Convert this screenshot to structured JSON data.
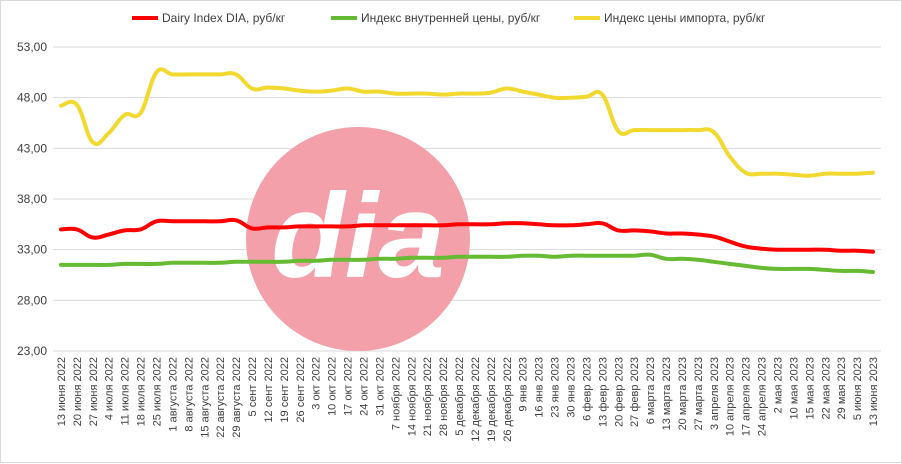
{
  "chart_data": {
    "type": "line",
    "title": "",
    "xlabel": "",
    "ylabel": "",
    "ylim": [
      23,
      53
    ],
    "yticks": [
      "23,00",
      "28,00",
      "33,00",
      "38,00",
      "43,00",
      "48,00",
      "53,00"
    ],
    "grid": "horizontal",
    "legend": "top",
    "watermark": "dia",
    "categories": [
      "13 июня 2022",
      "20 июня 2022",
      "27 июня 2022",
      "4 июля 2022",
      "11 июля 2022",
      "18 июля 2022",
      "25 июля 2022",
      "1 августа 2022",
      "8 августа 2022",
      "15 августа 2022",
      "22 августа 2022",
      "29 августа 2022",
      "5 сент 2022",
      "12 сент 2022",
      "19 сент 2022",
      "26 сент 2022",
      "3 окт 2022",
      "10 окт 2022",
      "17 окт 2022",
      "24 окт 2022",
      "31 окт 2022",
      "7 ноября 2022",
      "14 ноября 2022",
      "21 ноября 2022",
      "28 ноября 2022",
      "5 декабря 2022",
      "12 декабря 2022",
      "19 декабря 2022",
      "26 декабря 2022",
      "9 янв 2023",
      "16 янв 2023",
      "23 янв 2023",
      "30 янв 2023",
      "6 февр 2023",
      "13 февр 2023",
      "20 февр 2023",
      "27 февр 2023",
      "6 марта 2023",
      "13 марта 2023",
      "20 марта 2023",
      "27 марта 2023",
      "3 апреля 2023",
      "10 апреля 2023",
      "17 апреля 2023",
      "24 апреля 2023",
      "2 мая 2023",
      "10 мая 2023",
      "15 мая 2023",
      "22 мая 2023",
      "29 мая 2023",
      "5 июня 2023",
      "13 июня 2023"
    ],
    "series": [
      {
        "name": "Dairy Index DIA,  руб/кг",
        "color": "#ff0000",
        "values": [
          35.0,
          35.0,
          34.2,
          34.5,
          34.9,
          35.0,
          35.8,
          35.8,
          35.8,
          35.8,
          35.8,
          35.9,
          35.1,
          35.2,
          35.2,
          35.3,
          35.3,
          35.3,
          35.3,
          35.4,
          35.4,
          35.4,
          35.4,
          35.4,
          35.4,
          35.5,
          35.5,
          35.5,
          35.6,
          35.6,
          35.5,
          35.4,
          35.4,
          35.5,
          35.6,
          34.9,
          34.9,
          34.8,
          34.6,
          34.6,
          34.5,
          34.3,
          33.8,
          33.3,
          33.1,
          33.0,
          33.0,
          33.0,
          33.0,
          32.9,
          32.9,
          32.8
        ]
      },
      {
        "name": "Индекс внутренней цены, руб/кг",
        "color": "#66bb33",
        "values": [
          31.5,
          31.5,
          31.5,
          31.5,
          31.6,
          31.6,
          31.6,
          31.7,
          31.7,
          31.7,
          31.7,
          31.8,
          31.8,
          31.8,
          31.8,
          31.9,
          31.9,
          32.0,
          32.0,
          32.0,
          32.1,
          32.1,
          32.2,
          32.2,
          32.2,
          32.3,
          32.3,
          32.3,
          32.3,
          32.4,
          32.4,
          32.3,
          32.4,
          32.4,
          32.4,
          32.4,
          32.4,
          32.5,
          32.1,
          32.1,
          32.0,
          31.8,
          31.6,
          31.4,
          31.2,
          31.1,
          31.1,
          31.1,
          31.0,
          30.9,
          30.9,
          30.8
        ]
      },
      {
        "name": "Индекс цены импорта, руб/кг",
        "color": "#f2d930",
        "values": [
          47.2,
          47.3,
          43.6,
          44.5,
          46.3,
          46.5,
          50.5,
          50.3,
          50.3,
          50.3,
          50.3,
          50.3,
          48.9,
          49.0,
          48.9,
          48.7,
          48.6,
          48.7,
          48.9,
          48.6,
          48.6,
          48.4,
          48.4,
          48.4,
          48.3,
          48.4,
          48.4,
          48.5,
          48.9,
          48.6,
          48.3,
          48.0,
          48.0,
          48.1,
          48.3,
          44.7,
          44.8,
          44.8,
          44.8,
          44.8,
          44.8,
          44.6,
          42.2,
          40.6,
          40.5,
          40.5,
          40.4,
          40.3,
          40.5,
          40.5,
          40.5,
          40.6
        ]
      }
    ]
  }
}
